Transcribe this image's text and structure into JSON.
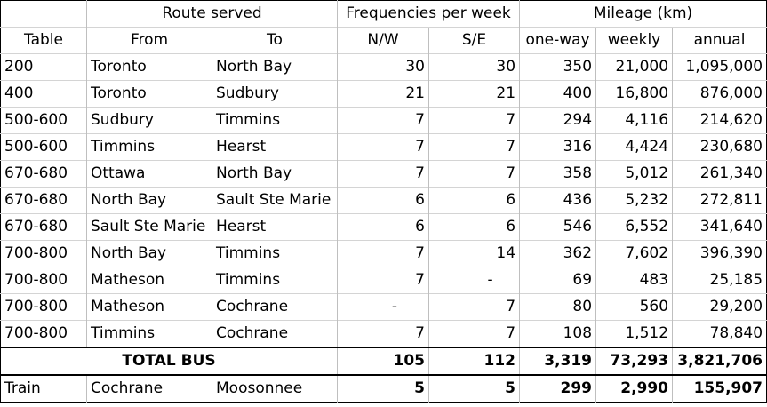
{
  "header": {
    "route_served": "Route served",
    "frequencies": "Frequencies per week",
    "mileage": "Mileage (km)",
    "table": "Table",
    "from": "From",
    "to": "To",
    "nw": "N/W",
    "se": "S/E",
    "oneway": "one-way",
    "weekly": "weekly",
    "annual": "annual"
  },
  "rows": [
    {
      "table": "200",
      "from": "Toronto",
      "to": "North Bay",
      "nw": "30",
      "se": "30",
      "oneway": "350",
      "weekly": "21,000",
      "annual": "1,095,000"
    },
    {
      "table": "400",
      "from": "Toronto",
      "to": "Sudbury",
      "nw": "21",
      "se": "21",
      "oneway": "400",
      "weekly": "16,800",
      "annual": "876,000"
    },
    {
      "table": "500-600",
      "from": "Sudbury",
      "to": "Timmins",
      "nw": "7",
      "se": "7",
      "oneway": "294",
      "weekly": "4,116",
      "annual": "214,620"
    },
    {
      "table": "500-600",
      "from": "Timmins",
      "to": "Hearst",
      "nw": "7",
      "se": "7",
      "oneway": "316",
      "weekly": "4,424",
      "annual": "230,680"
    },
    {
      "table": "670-680",
      "from": "Ottawa",
      "to": "North Bay",
      "nw": "7",
      "se": "7",
      "oneway": "358",
      "weekly": "5,012",
      "annual": "261,340"
    },
    {
      "table": "670-680",
      "from": "North Bay",
      "to": "Sault Ste Marie",
      "nw": "6",
      "se": "6",
      "oneway": "436",
      "weekly": "5,232",
      "annual": "272,811"
    },
    {
      "table": "670-680",
      "from": "Sault Ste Marie",
      "to": "Hearst",
      "nw": "6",
      "se": "6",
      "oneway": "546",
      "weekly": "6,552",
      "annual": "341,640"
    },
    {
      "table": "700-800",
      "from": "North Bay",
      "to": "Timmins",
      "nw": "7",
      "se": "14",
      "oneway": "362",
      "weekly": "7,602",
      "annual": "396,390"
    },
    {
      "table": "700-800",
      "from": "Matheson",
      "to": "Timmins",
      "nw": "7",
      "se": "-",
      "oneway": "69",
      "weekly": "483",
      "annual": "25,185"
    },
    {
      "table": "700-800",
      "from": "Matheson",
      "to": "Cochrane",
      "nw": "-",
      "se": "7",
      "oneway": "80",
      "weekly": "560",
      "annual": "29,200"
    },
    {
      "table": "700-800",
      "from": "Timmins",
      "to": "Cochrane",
      "nw": "7",
      "se": "7",
      "oneway": "108",
      "weekly": "1,512",
      "annual": "78,840"
    }
  ],
  "total": {
    "label": "TOTAL BUS",
    "nw": "105",
    "se": "112",
    "oneway": "3,319",
    "weekly": "73,293",
    "annual": "3,821,706"
  },
  "train": {
    "table": "Train",
    "from": "Cochrane",
    "to": "Moosonnee",
    "nw": "5",
    "se": "5",
    "oneway": "299",
    "weekly": "2,990",
    "annual": "155,907"
  }
}
